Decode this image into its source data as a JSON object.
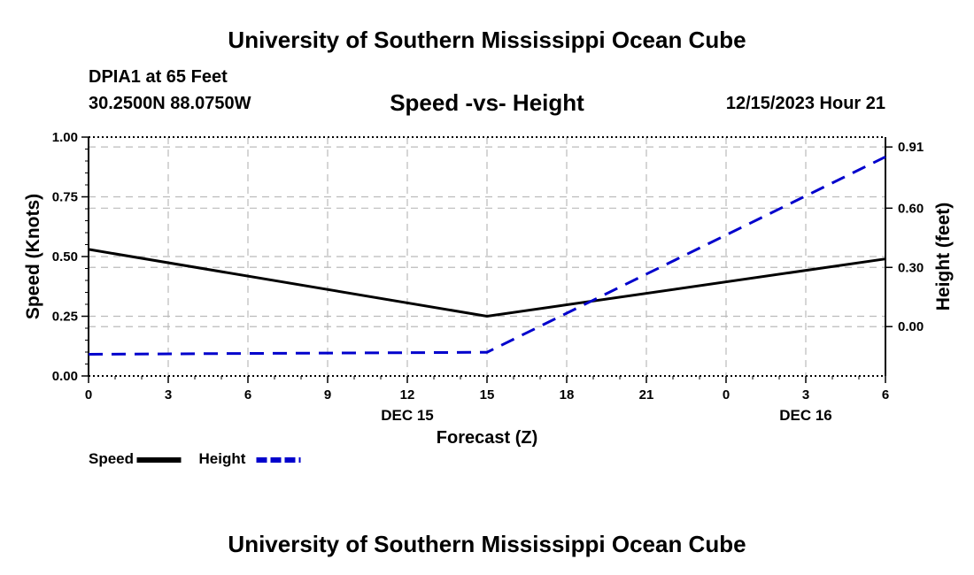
{
  "header": {
    "title": "University of Southern Mississippi Ocean Cube",
    "station": "DPIA1 at 65 Feet",
    "coords": "30.2500N  88.0750W",
    "chart_title": "Speed -vs- Height",
    "datetime": "12/15/2023 Hour 21"
  },
  "footer": {
    "title": "University of Southern Mississippi Ocean Cube"
  },
  "chart_data": {
    "type": "line",
    "title": "Speed -vs- Height",
    "xlabel": "Forecast (Z)",
    "ylabel": "Speed (Knots)",
    "y2label": "Height (feet)",
    "x_ticks": [
      "0",
      "3",
      "6",
      "9",
      "12",
      "15",
      "18",
      "21",
      "0",
      "3",
      "6"
    ],
    "x_day_labels": [
      {
        "label": "DEC 15",
        "hour_index": 12
      },
      {
        "label": "DEC 16",
        "hour_index": 27
      }
    ],
    "xlim": [
      0,
      30
    ],
    "ylim": [
      0,
      1.0
    ],
    "y_ticks": [
      0.0,
      0.25,
      0.5,
      0.75,
      1.0
    ],
    "y_tick_labels": [
      "0.00",
      "0.25",
      "0.50",
      "0.75",
      "1.00"
    ],
    "y2lim": [
      -0.25,
      0.96
    ],
    "y2_ticks": [
      0.0,
      0.3,
      0.6,
      0.91
    ],
    "y2_tick_labels": [
      "0.00",
      "0.30",
      "0.60",
      "0.91"
    ],
    "grid": true,
    "series": [
      {
        "name": "Speed",
        "axis": "left",
        "color": "#000000",
        "dash": "solid",
        "x": [
          0,
          15,
          30
        ],
        "values": [
          0.53,
          0.25,
          0.49
        ]
      },
      {
        "name": "Height",
        "axis": "right",
        "color": "#0000cc",
        "dash": "dashed",
        "x": [
          0,
          15,
          30
        ],
        "values": [
          -0.14,
          -0.13,
          0.86
        ]
      }
    ],
    "legend": {
      "placement": "bottom-left",
      "items": [
        "Speed",
        "Height"
      ]
    }
  }
}
